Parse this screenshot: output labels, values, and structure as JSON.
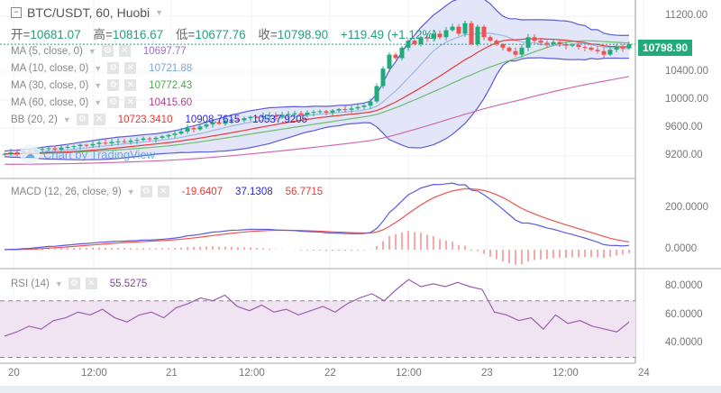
{
  "header": {
    "symbol": "BTC/USDT, 60, Huobi",
    "ohlc": [
      {
        "label": "开=",
        "value": "10681.07"
      },
      {
        "label": "高=",
        "value": "10816.67"
      },
      {
        "label": "低=",
        "value": "10677.76"
      },
      {
        "label": "收=",
        "value": "10798.90"
      }
    ],
    "change": "+119.49 (+1.12%)"
  },
  "indicators": [
    {
      "label": "MA (5, close, 0)",
      "values": [
        "10697.77"
      ],
      "colors": [
        "#9b6fc9"
      ]
    },
    {
      "label": "MA (10, close, 0)",
      "values": [
        "10721.88"
      ],
      "colors": [
        "#7fa3d6"
      ]
    },
    {
      "label": "MA (30, close, 0)",
      "values": [
        "10772.43"
      ],
      "colors": [
        "#4aa84a"
      ]
    },
    {
      "label": "MA (60, close, 0)",
      "values": [
        "10415.60"
      ],
      "colors": [
        "#b03e8e"
      ]
    },
    {
      "label": "BB (20, 2)",
      "values": [
        "10723.3410",
        "10908.7615",
        "10537.9205"
      ],
      "colors": [
        "#e53935",
        "#2929d6",
        "#2929d6"
      ]
    }
  ],
  "macd": {
    "label": "MACD (12, 26, close, 9)",
    "values": [
      "-19.6407",
      "37.1308",
      "56.7715"
    ],
    "colors": [
      "#e53935",
      "#2929d6",
      "#e53935"
    ]
  },
  "rsi": {
    "label": "RSI (14)",
    "value": "55.5275",
    "color": "#8e3d9e"
  },
  "watermark": "Chart by TradingView",
  "last_price": "10798.90",
  "price_axis": [
    "11200.00",
    "10400.00",
    "10000.00",
    "9600.00",
    "9200.00"
  ],
  "macd_axis": [
    "200.0000",
    "0.0000"
  ],
  "rsi_axis": [
    "80.0000",
    "60.0000",
    "40.0000"
  ],
  "time_axis": [
    "20",
    "12:00",
    "21",
    "12:00",
    "22",
    "12:00",
    "23",
    "12:00",
    "24"
  ],
  "colors": {
    "up": "#1fab7a",
    "down": "#ef5350",
    "band": "#dcdff6",
    "rsi_band": "#f1e4f2"
  },
  "chart_data": {
    "type": "candlestick",
    "closes": [
      9230,
      9250,
      9240,
      9270,
      9260,
      9290,
      9300,
      9310,
      9290,
      9320,
      9330,
      9340,
      9360,
      9350,
      9370,
      9390,
      9380,
      9400,
      9410,
      9400,
      9420,
      9430,
      9450,
      9440,
      9460,
      9480,
      9500,
      9520,
      9550,
      9600,
      9580,
      9620,
      9650,
      9680,
      9660,
      9700,
      9720,
      9710,
      9740,
      9760,
      9750,
      9770,
      9780,
      9760,
      9790,
      9800,
      9810,
      9790,
      9820,
      9830,
      9840,
      9820,
      9850,
      9870,
      9860,
      9880,
      9900,
      9920,
      9980,
      10200,
      10450,
      10650,
      10600,
      10750,
      10850,
      10800,
      10900,
      10880,
      10950,
      10900,
      11000,
      11050,
      10950,
      11100,
      10800,
      11050,
      10900,
      10850,
      10800,
      10750,
      10700,
      10650,
      10750,
      10900,
      10850,
      10820,
      10800,
      10830,
      10800,
      10780,
      10790,
      10760,
      10750,
      10720,
      10700,
      10650,
      10720,
      10760,
      10740,
      10798.9
    ],
    "rsi": [
      45,
      48,
      52,
      50,
      56,
      58,
      62,
      60,
      64,
      58,
      55,
      60,
      62,
      58,
      65,
      68,
      72,
      70,
      74,
      66,
      63,
      67,
      62,
      64,
      60,
      63,
      66,
      62,
      68,
      72,
      75,
      70,
      78,
      85,
      80,
      82,
      80,
      83,
      80,
      78,
      62,
      60,
      56,
      58,
      50,
      60,
      54,
      56,
      52,
      50,
      48,
      55
    ],
    "price_ylim": [
      9000,
      11400
    ],
    "rsi_levels": [
      70,
      30
    ]
  }
}
